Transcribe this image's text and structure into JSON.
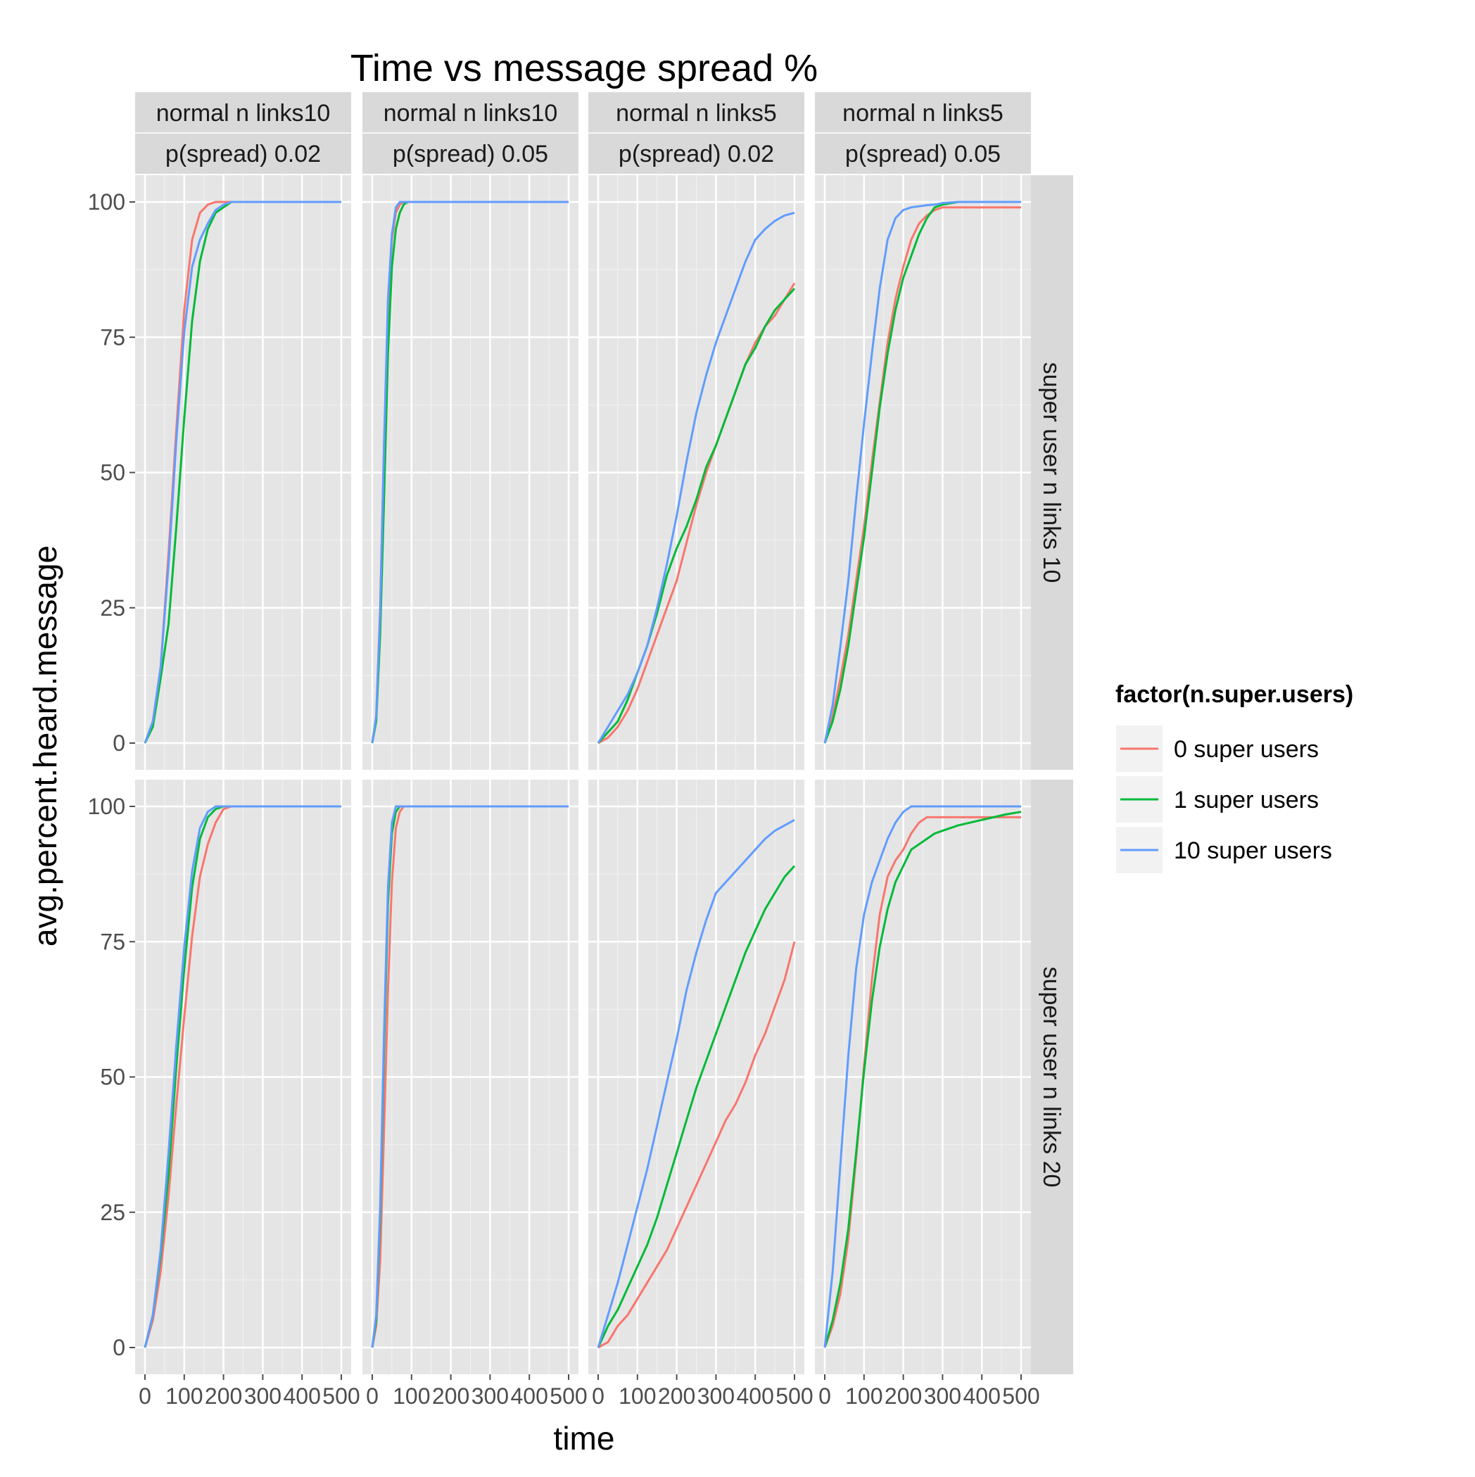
{
  "chart_data": {
    "type": "line",
    "title": "Time vs message spread %",
    "xlabel": "time",
    "ylabel": "avg.percent.heard.message",
    "xlim": [
      0,
      500
    ],
    "ylim": [
      0,
      100
    ],
    "x_ticks": [
      0,
      100,
      200,
      300,
      400,
      500
    ],
    "x_tick_labels": [
      "0",
      "100",
      "200",
      "300",
      "400",
      "500"
    ],
    "y_ticks": [
      0,
      25,
      50,
      75,
      100
    ],
    "y_tick_labels": [
      "0",
      "25",
      "50",
      "75",
      "100"
    ],
    "grid": true,
    "legend": {
      "title": "factor(n.super.users)",
      "placement": "right",
      "entries": [
        {
          "label": "0 super users",
          "color": "#F8766D"
        },
        {
          "label": "1 super users",
          "color": "#00BA38"
        },
        {
          "label": "10 super users",
          "color": "#619CFF"
        }
      ]
    },
    "column_strips": [
      {
        "line1": "normal n links10",
        "line2": "p(spread) 0.02"
      },
      {
        "line1": "normal n links10",
        "line2": "p(spread) 0.05"
      },
      {
        "line1": "normal n links5",
        "line2": "p(spread) 0.02"
      },
      {
        "line1": "normal n links5",
        "line2": "p(spread) 0.05"
      }
    ],
    "row_strips": [
      "super user n links 10",
      "super user n links 20"
    ],
    "panels": [
      {
        "row": 0,
        "col": 0,
        "series": [
          {
            "name": "0 super users",
            "x": [
              0,
              20,
              40,
              60,
              80,
              100,
              120,
              140,
              160,
              180,
              200,
              220,
              260,
              500
            ],
            "y": [
              0,
              4,
              14,
              35,
              58,
              80,
              93,
              98,
              99.5,
              100,
              100,
              100,
              100,
              100
            ]
          },
          {
            "name": "1 super users",
            "x": [
              0,
              20,
              40,
              60,
              80,
              100,
              120,
              140,
              160,
              180,
              200,
              220,
              260,
              500
            ],
            "y": [
              0,
              3,
              12,
              22,
              40,
              60,
              78,
              89,
              95,
              98,
              99,
              100,
              100,
              100
            ]
          },
          {
            "name": "10 super users",
            "x": [
              0,
              20,
              40,
              60,
              80,
              100,
              120,
              140,
              160,
              180,
              200,
              220,
              260,
              500
            ],
            "y": [
              0,
              4,
              14,
              33,
              56,
              76,
              88,
              93,
              96,
              98.5,
              99.5,
              100,
              100,
              100
            ]
          }
        ]
      },
      {
        "row": 0,
        "col": 1,
        "series": [
          {
            "name": "0 super users",
            "x": [
              0,
              10,
              20,
              30,
              40,
              50,
              60,
              70,
              80,
              90,
              100,
              120,
              500
            ],
            "y": [
              0,
              5,
              25,
              55,
              80,
              93,
              98,
              99.5,
              100,
              100,
              100,
              100,
              100
            ]
          },
          {
            "name": "1 super users",
            "x": [
              0,
              10,
              20,
              30,
              40,
              50,
              60,
              70,
              80,
              90,
              100,
              120,
              500
            ],
            "y": [
              0,
              4,
              20,
              45,
              72,
              88,
              95,
              98,
              99.5,
              100,
              100,
              100,
              100
            ]
          },
          {
            "name": "10 super users",
            "x": [
              0,
              10,
              20,
              30,
              40,
              50,
              60,
              70,
              80,
              90,
              100,
              120,
              500
            ],
            "y": [
              0,
              5,
              24,
              55,
              82,
              94,
              99,
              100,
              100,
              100,
              100,
              100,
              100
            ]
          }
        ]
      },
      {
        "row": 0,
        "col": 2,
        "series": [
          {
            "name": "0 super users",
            "x": [
              0,
              25,
              50,
              75,
              100,
              125,
              150,
              175,
              200,
              225,
              250,
              275,
              300,
              325,
              350,
              375,
              400,
              425,
              450,
              475,
              500
            ],
            "y": [
              0,
              1,
              3,
              6,
              10,
              15,
              20,
              25,
              30,
              37,
              44,
              50,
              55,
              60,
              65,
              70,
              74,
              77,
              79,
              82,
              85
            ]
          },
          {
            "name": "1 super users",
            "x": [
              0,
              25,
              50,
              75,
              100,
              125,
              150,
              175,
              200,
              225,
              250,
              275,
              300,
              325,
              350,
              375,
              400,
              425,
              450,
              475,
              500
            ],
            "y": [
              0,
              2,
              4,
              8,
              13,
              18,
              24,
              31,
              36,
              40,
              45,
              51,
              55,
              60,
              65,
              70,
              73,
              77,
              80,
              82,
              84
            ]
          },
          {
            "name": "10 super users",
            "x": [
              0,
              25,
              50,
              75,
              100,
              125,
              150,
              175,
              200,
              225,
              250,
              275,
              300,
              325,
              350,
              375,
              400,
              425,
              450,
              475,
              500
            ],
            "y": [
              0,
              3,
              6,
              9,
              13,
              18,
              25,
              33,
              42,
              52,
              61,
              68,
              74,
              79,
              84,
              89,
              93,
              95,
              96.5,
              97.5,
              98
            ]
          }
        ]
      },
      {
        "row": 0,
        "col": 3,
        "series": [
          {
            "name": "0 super users",
            "x": [
              0,
              20,
              40,
              60,
              80,
              100,
              120,
              140,
              160,
              180,
              200,
              220,
              240,
              260,
              280,
              300,
              340,
              500
            ],
            "y": [
              0,
              5,
              12,
              20,
              30,
              40,
              52,
              63,
              74,
              82,
              88,
              93,
              96,
              97.5,
              98.5,
              99,
              99,
              99
            ]
          },
          {
            "name": "1 super users",
            "x": [
              0,
              20,
              40,
              60,
              80,
              100,
              120,
              140,
              160,
              180,
              200,
              220,
              240,
              260,
              280,
              300,
              340,
              500
            ],
            "y": [
              0,
              4,
              10,
              18,
              28,
              38,
              50,
              62,
              72,
              80,
              86,
              90,
              94,
              97,
              99,
              99.5,
              100,
              100
            ]
          },
          {
            "name": "10 super users",
            "x": [
              0,
              20,
              40,
              60,
              80,
              100,
              120,
              140,
              160,
              180,
              200,
              220,
              240,
              260,
              280,
              300,
              340,
              500
            ],
            "y": [
              0,
              7,
              18,
              30,
              45,
              59,
              72,
              84,
              93,
              97,
              98.5,
              99,
              99.2,
              99.4,
              99.5,
              99.8,
              100,
              100
            ]
          }
        ]
      },
      {
        "row": 1,
        "col": 0,
        "series": [
          {
            "name": "0 super users",
            "x": [
              0,
              20,
              40,
              60,
              80,
              100,
              120,
              140,
              160,
              180,
              200,
              220,
              240,
              500
            ],
            "y": [
              0,
              5,
              14,
              28,
              45,
              61,
              76,
              87,
              93,
              97,
              99.5,
              100,
              100,
              100
            ]
          },
          {
            "name": "1 super users",
            "x": [
              0,
              20,
              40,
              60,
              80,
              100,
              120,
              140,
              160,
              180,
              200,
              220,
              240,
              500
            ],
            "y": [
              0,
              6,
              17,
              32,
              52,
              70,
              85,
              94,
              98,
              99.5,
              100,
              100,
              100,
              100
            ]
          },
          {
            "name": "10 super users",
            "x": [
              0,
              20,
              40,
              60,
              80,
              100,
              120,
              140,
              160,
              180,
              200,
              220,
              240,
              500
            ],
            "y": [
              0,
              6,
              18,
              36,
              56,
              74,
              88,
              96,
              99,
              100,
              100,
              100,
              100,
              100
            ]
          }
        ]
      },
      {
        "row": 1,
        "col": 1,
        "series": [
          {
            "name": "0 super users",
            "x": [
              0,
              10,
              20,
              30,
              40,
              50,
              60,
              70,
              80,
              90,
              100,
              120,
              500
            ],
            "y": [
              0,
              4,
              16,
              40,
              66,
              86,
              96,
              99,
              100,
              100,
              100,
              100,
              100
            ]
          },
          {
            "name": "1 super users",
            "x": [
              0,
              10,
              20,
              30,
              40,
              50,
              60,
              70,
              80,
              90,
              100,
              120,
              500
            ],
            "y": [
              0,
              5,
              24,
              55,
              82,
              95,
              99,
              100,
              100,
              100,
              100,
              100,
              100
            ]
          },
          {
            "name": "10 super users",
            "x": [
              0,
              10,
              20,
              30,
              40,
              50,
              60,
              70,
              80,
              90,
              100,
              120,
              500
            ],
            "y": [
              0,
              6,
              26,
              58,
              85,
              97,
              100,
              100,
              100,
              100,
              100,
              100,
              100
            ]
          }
        ]
      },
      {
        "row": 1,
        "col": 2,
        "series": [
          {
            "name": "0 super users",
            "x": [
              0,
              25,
              50,
              75,
              100,
              125,
              150,
              175,
              200,
              225,
              250,
              275,
              300,
              325,
              350,
              375,
              400,
              425,
              450,
              475,
              500
            ],
            "y": [
              0,
              1,
              4,
              6,
              9,
              12,
              15,
              18,
              22,
              26,
              30,
              34,
              38,
              42,
              45,
              49,
              54,
              58,
              63,
              68,
              75
            ]
          },
          {
            "name": "1 super users",
            "x": [
              0,
              25,
              50,
              75,
              100,
              125,
              150,
              175,
              200,
              225,
              250,
              275,
              300,
              325,
              350,
              375,
              400,
              425,
              450,
              475,
              500
            ],
            "y": [
              0,
              4,
              7,
              11,
              15,
              19,
              24,
              30,
              36,
              42,
              48,
              53,
              58,
              63,
              68,
              73,
              77,
              81,
              84,
              87,
              89
            ]
          },
          {
            "name": "10 super users",
            "x": [
              0,
              25,
              50,
              75,
              100,
              125,
              150,
              175,
              200,
              225,
              250,
              275,
              300,
              325,
              350,
              375,
              400,
              425,
              450,
              475,
              500
            ],
            "y": [
              0,
              6,
              12,
              19,
              26,
              33,
              41,
              49,
              57,
              66,
              73,
              79,
              84,
              86,
              88,
              90,
              92,
              94,
              95.5,
              96.5,
              97.5
            ]
          }
        ]
      },
      {
        "row": 1,
        "col": 3,
        "series": [
          {
            "name": "0 super users",
            "x": [
              0,
              20,
              40,
              60,
              80,
              100,
              120,
              140,
              160,
              180,
              200,
              220,
              240,
              260,
              280,
              300,
              340,
              500
            ],
            "y": [
              0,
              4,
              10,
              20,
              35,
              52,
              68,
              80,
              87,
              90,
              92,
              95,
              97,
              98,
              98,
              98,
              98,
              98
            ]
          },
          {
            "name": "1 super users",
            "x": [
              0,
              20,
              40,
              60,
              80,
              100,
              120,
              140,
              160,
              180,
              200,
              220,
              240,
              260,
              280,
              300,
              340,
              400,
              460,
              500
            ],
            "y": [
              0,
              5,
              12,
              22,
              36,
              51,
              64,
              74,
              81,
              86,
              89,
              92,
              93,
              94,
              95,
              95.5,
              96.5,
              97.5,
              98.5,
              99
            ]
          },
          {
            "name": "10 super users",
            "x": [
              0,
              20,
              40,
              60,
              80,
              100,
              120,
              140,
              160,
              180,
              200,
              220,
              240,
              260,
              500
            ],
            "y": [
              0,
              14,
              34,
              54,
              70,
              80,
              86,
              90,
              94,
              97,
              99,
              100,
              100,
              100,
              100
            ]
          }
        ]
      }
    ]
  }
}
